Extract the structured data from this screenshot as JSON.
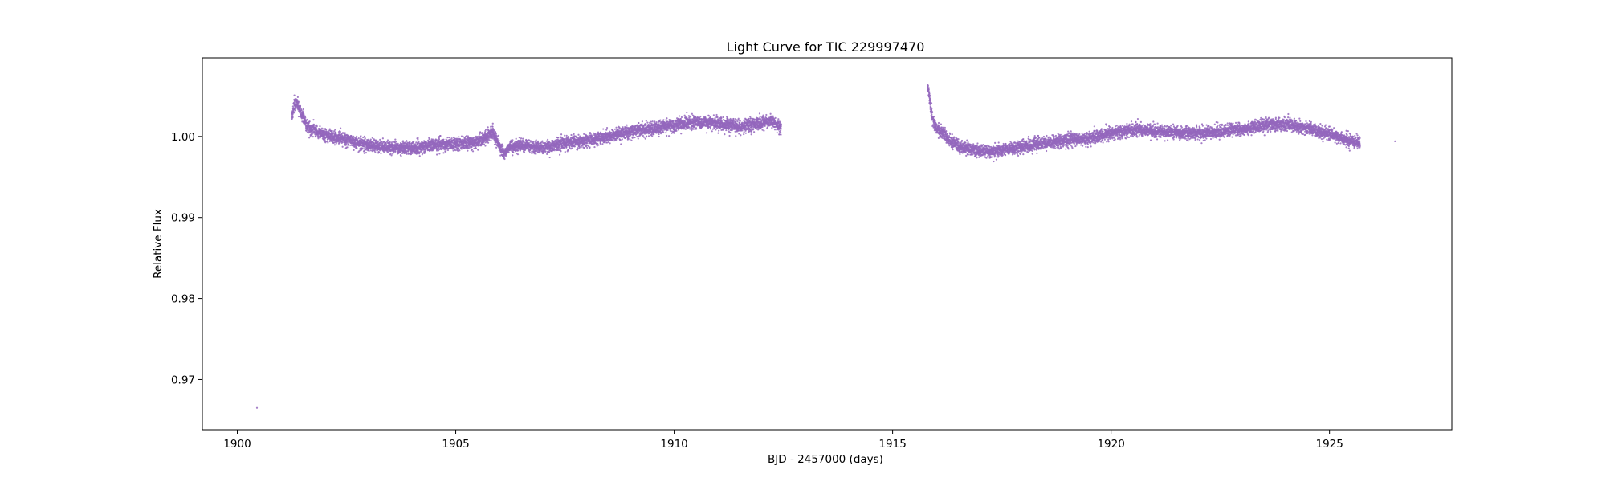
{
  "chart_data": {
    "type": "scatter",
    "title": "Light Curve for TIC 229997470",
    "xlabel": "BJD - 2457000 (days)",
    "ylabel": "Relative Flux",
    "xlim": [
      1899.2,
      1927.8
    ],
    "ylim": [
      0.9638,
      1.0097
    ],
    "xticks": [
      1900,
      1905,
      1910,
      1915,
      1920,
      1925
    ],
    "xtick_labels": [
      "1900",
      "1905",
      "1910",
      "1915",
      "1920",
      "1925"
    ],
    "yticks": [
      0.97,
      0.98,
      0.99,
      1.0
    ],
    "ytick_labels": [
      "0.97",
      "0.98",
      "0.99",
      "1.00"
    ],
    "grid": false,
    "marker_color": "#9467bd",
    "series": [
      {
        "segments": [
          {
            "x": [
              1901.25,
              1901.3,
              1901.35,
              1901.45,
              1901.6,
              1901.8,
              1902.0,
              1902.5,
              1903.0,
              1903.5,
              1904.0,
              1904.5,
              1905.0,
              1905.5,
              1905.85,
              1905.95,
              1906.1,
              1906.25,
              1906.5,
              1907.0,
              1907.5,
              1908.0,
              1908.5,
              1909.0,
              1909.5,
              1910.0,
              1910.5,
              1911.0,
              1911.5,
              1912.0,
              1912.2,
              1912.45
            ],
            "y": [
              1.0025,
              1.0038,
              1.0042,
              1.003,
              1.0012,
              1.0006,
              1.0002,
              0.9996,
              0.9989,
              0.9987,
              0.9985,
              0.9989,
              0.9991,
              0.9993,
              1.0005,
              0.9995,
              0.9978,
              0.9988,
              0.9989,
              0.9986,
              0.9992,
              0.9995,
              1.0,
              1.0006,
              1.001,
              1.0014,
              1.0018,
              1.0016,
              1.0013,
              1.0016,
              1.002,
              1.0011
            ]
          },
          {
            "x": [
              1915.8,
              1915.85,
              1915.9,
              1916.0,
              1916.15,
              1916.3,
              1916.5,
              1917.0,
              1917.5,
              1918.0,
              1918.5,
              1919.0,
              1919.5,
              1920.0,
              1920.5,
              1921.0,
              1921.5,
              1922.0,
              1922.5,
              1923.0,
              1923.5,
              1924.0,
              1924.5,
              1925.0,
              1925.4,
              1925.7
            ],
            "y": [
              1.0065,
              1.0045,
              1.0025,
              1.001,
              1.0005,
              0.9995,
              0.9988,
              0.9982,
              0.9983,
              0.9987,
              0.9992,
              0.9995,
              0.9998,
              1.0004,
              1.0008,
              1.0006,
              1.0005,
              1.0004,
              1.0006,
              1.0009,
              1.0014,
              1.0015,
              1.001,
              1.0003,
              0.9996,
              0.9992
            ]
          }
        ],
        "noise": 0.0007,
        "outliers": [
          {
            "x": 1900.45,
            "y": 0.9665
          },
          {
            "x": 1926.5,
            "y": 0.9994
          }
        ]
      }
    ]
  }
}
